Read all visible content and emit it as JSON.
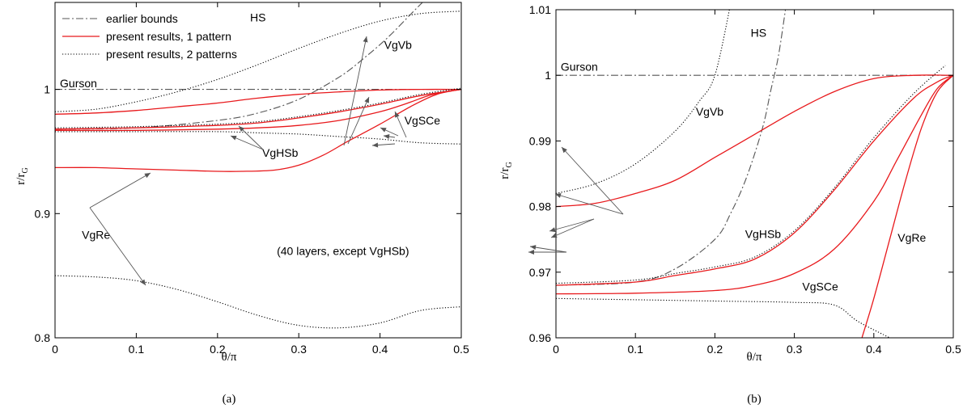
{
  "chart_data": [
    {
      "type": "line",
      "panel_label": "(a)",
      "xlabel": "θ/π",
      "ylabel_main": "r/r",
      "ylabel_sub": "G",
      "xlim": [
        0,
        0.5
      ],
      "ylim": [
        0.8,
        1.07
      ],
      "xticks": [
        0,
        0.1,
        0.2,
        0.3,
        0.4,
        0.5
      ],
      "yticks": [
        0.8,
        0.9,
        1
      ],
      "xtick_labels": [
        "0",
        "0.1",
        "0.2",
        "0.3",
        "0.4",
        "0.5"
      ],
      "ytick_labels": [
        "0.8",
        "0.9",
        "1"
      ],
      "legend": {
        "placement": "top-left",
        "entries": [
          {
            "label": "earlier bounds",
            "style": "dashdot"
          },
          {
            "label": "present results, 1 pattern",
            "style": "solid"
          },
          {
            "label": "present results, 2 patterns",
            "style": "dotted"
          }
        ]
      },
      "annotations": [
        {
          "text": "HS",
          "x": 0.24,
          "y": 1.058
        },
        {
          "text": "Gurson",
          "x": 0.006,
          "y": 1.005
        },
        {
          "text": "VgVb",
          "x": 0.405,
          "y": 1.036
        },
        {
          "text": "VgSCe",
          "x": 0.43,
          "y": 0.975
        },
        {
          "text": "VgHSb",
          "x": 0.255,
          "y": 0.949
        },
        {
          "text": "VgRe",
          "x": 0.033,
          "y": 0.883
        },
        {
          "text": "(40 layers, except VgHSb)",
          "x": 0.273,
          "y": 0.87
        }
      ],
      "series": [
        {
          "style": "dashdot",
          "color": "#000000",
          "x": [
            0,
            0.1,
            0.2,
            0.25,
            0.3,
            0.35,
            0.38,
            0.41,
            0.44,
            0.46
          ],
          "y": [
            0.968,
            0.969,
            0.975,
            0.981,
            0.992,
            1.01,
            1.025,
            1.042,
            1.062,
            1.075
          ]
        },
        {
          "style": "dashdot",
          "color": "#000000",
          "x": [
            0,
            0.5
          ],
          "y": [
            1,
            1
          ]
        },
        {
          "style": "solid",
          "color": "#e8191c",
          "x": [
            0,
            0.05,
            0.1,
            0.15,
            0.2,
            0.25,
            0.3,
            0.35,
            0.4,
            0.45,
            0.5
          ],
          "y": [
            0.98,
            0.981,
            0.983,
            0.986,
            0.989,
            0.993,
            0.996,
            0.998,
            0.9995,
            1,
            1
          ]
        },
        {
          "style": "dotted",
          "color": "#000000",
          "x": [
            0,
            0.05,
            0.1,
            0.15,
            0.2,
            0.25,
            0.3,
            0.35,
            0.4,
            0.45,
            0.5
          ],
          "y": [
            0.982,
            0.984,
            0.99,
            0.998,
            1.008,
            1.02,
            1.033,
            1.045,
            1.055,
            1.061,
            1.063
          ]
        },
        {
          "style": "solid",
          "color": "#e8191c",
          "x": [
            0,
            0.1,
            0.2,
            0.25,
            0.3,
            0.35,
            0.4,
            0.45,
            0.5
          ],
          "y": [
            0.968,
            0.969,
            0.971,
            0.973,
            0.977,
            0.982,
            0.988,
            0.995,
            1
          ]
        },
        {
          "style": "dotted",
          "color": "#000000",
          "x": [
            0,
            0.1,
            0.2,
            0.25,
            0.3,
            0.35,
            0.4,
            0.45,
            0.5
          ],
          "y": [
            0.969,
            0.97,
            0.972,
            0.974,
            0.978,
            0.983,
            0.989,
            0.996,
            1.001
          ]
        },
        {
          "style": "solid",
          "color": "#e8191c",
          "x": [
            0,
            0.1,
            0.2,
            0.25,
            0.3,
            0.35,
            0.4,
            0.43,
            0.46,
            0.48,
            0.5
          ],
          "y": [
            0.967,
            0.967,
            0.968,
            0.969,
            0.971,
            0.975,
            0.982,
            0.988,
            0.995,
            0.998,
            1
          ]
        },
        {
          "style": "dotted",
          "color": "#000000",
          "x": [
            0,
            0.1,
            0.2,
            0.25,
            0.3,
            0.35,
            0.4,
            0.45,
            0.5
          ],
          "y": [
            0.966,
            0.966,
            0.966,
            0.965,
            0.964,
            0.962,
            0.96,
            0.957,
            0.956
          ]
        },
        {
          "style": "solid",
          "color": "#e8191c",
          "x": [
            0,
            0.05,
            0.1,
            0.15,
            0.2,
            0.23,
            0.27,
            0.3,
            0.33,
            0.36,
            0.4,
            0.44,
            0.47,
            0.5
          ],
          "y": [
            0.937,
            0.937,
            0.936,
            0.935,
            0.934,
            0.934,
            0.935,
            0.939,
            0.947,
            0.958,
            0.972,
            0.987,
            0.996,
            1
          ]
        },
        {
          "style": "dotted",
          "color": "#000000",
          "x": [
            0,
            0.05,
            0.1,
            0.15,
            0.2,
            0.25,
            0.3,
            0.35,
            0.4,
            0.45,
            0.5
          ],
          "y": [
            0.85,
            0.849,
            0.846,
            0.839,
            0.829,
            0.818,
            0.81,
            0.808,
            0.812,
            0.822,
            0.825
          ]
        }
      ]
    },
    {
      "type": "line",
      "panel_label": "(b)",
      "xlabel": "θ/π",
      "ylabel_main": "r/r",
      "ylabel_sub": "G",
      "xlim": [
        0,
        0.5
      ],
      "ylim": [
        0.96,
        1.01
      ],
      "xticks": [
        0,
        0.1,
        0.2,
        0.3,
        0.4,
        0.5
      ],
      "yticks": [
        0.96,
        0.97,
        0.98,
        0.99,
        1,
        1.01
      ],
      "xtick_labels": [
        "0",
        "0.1",
        "0.2",
        "0.3",
        "0.4",
        "0.5"
      ],
      "ytick_labels": [
        "0.96",
        "0.97",
        "0.98",
        "0.99",
        "1",
        "1.01"
      ],
      "annotations": [
        {
          "text": "HS",
          "x": 0.245,
          "y": 1.0065
        },
        {
          "text": "Gurson",
          "x": 0.006,
          "y": 1.0013
        },
        {
          "text": "VgVb",
          "x": 0.176,
          "y": 0.9945
        },
        {
          "text": "VgHSb",
          "x": 0.238,
          "y": 0.9758
        },
        {
          "text": "VgSCe",
          "x": 0.31,
          "y": 0.9678
        },
        {
          "text": "VgRe",
          "x": 0.43,
          "y": 0.9753
        }
      ],
      "series": [
        {
          "style": "dashdot",
          "color": "#000000",
          "x": [
            0,
            0.1,
            0.15,
            0.2,
            0.22,
            0.24,
            0.26,
            0.27,
            0.28,
            0.29
          ],
          "y": [
            0.968,
            0.9685,
            0.9705,
            0.975,
            0.979,
            0.9845,
            0.992,
            0.9975,
            1.003,
            1.011
          ]
        },
        {
          "style": "dashdot",
          "color": "#000000",
          "x": [
            0,
            0.5
          ],
          "y": [
            1,
            1
          ]
        },
        {
          "style": "dotted",
          "color": "#000000",
          "x": [
            0,
            0.05,
            0.1,
            0.15,
            0.18,
            0.2,
            0.22
          ],
          "y": [
            0.982,
            0.9835,
            0.9865,
            0.9915,
            0.996,
            1.0,
            1.011
          ]
        },
        {
          "style": "solid",
          "color": "#e8191c",
          "x": [
            0,
            0.05,
            0.1,
            0.15,
            0.2,
            0.25,
            0.3,
            0.35,
            0.4,
            0.45,
            0.5
          ],
          "y": [
            0.98,
            0.9805,
            0.982,
            0.984,
            0.9875,
            0.991,
            0.9945,
            0.9975,
            0.9995,
            1.0,
            1.0
          ]
        },
        {
          "style": "solid",
          "color": "#e8191c",
          "x": [
            0,
            0.1,
            0.15,
            0.2,
            0.25,
            0.3,
            0.35,
            0.4,
            0.45,
            0.48,
            0.5
          ],
          "y": [
            0.968,
            0.9685,
            0.9695,
            0.9705,
            0.972,
            0.976,
            0.9825,
            0.99,
            0.9965,
            0.999,
            1.0
          ]
        },
        {
          "style": "dotted",
          "color": "#000000",
          "x": [
            0,
            0.1,
            0.15,
            0.2,
            0.25,
            0.3,
            0.35,
            0.4,
            0.45,
            0.49
          ],
          "y": [
            0.9683,
            0.9688,
            0.9698,
            0.9708,
            0.9723,
            0.9763,
            0.9828,
            0.9905,
            0.9972,
            1.0015
          ]
        },
        {
          "style": "solid",
          "color": "#e8191c",
          "x": [
            0,
            0.1,
            0.2,
            0.25,
            0.3,
            0.35,
            0.4,
            0.43,
            0.46,
            0.48,
            0.5
          ],
          "y": [
            0.9667,
            0.9668,
            0.9672,
            0.968,
            0.9698,
            0.9735,
            0.9808,
            0.9873,
            0.994,
            0.998,
            1.0
          ]
        },
        {
          "style": "dotted",
          "color": "#000000",
          "x": [
            0,
            0.1,
            0.2,
            0.3,
            0.35,
            0.38,
            0.42
          ],
          "y": [
            0.966,
            0.9658,
            0.9656,
            0.9654,
            0.965,
            0.9625,
            0.96
          ]
        },
        {
          "style": "solid",
          "color": "#e8191c",
          "x": [
            0.385,
            0.4,
            0.42,
            0.44,
            0.46,
            0.48,
            0.5
          ],
          "y": [
            0.96,
            0.966,
            0.975,
            0.984,
            0.992,
            0.9975,
            1.0
          ]
        }
      ]
    }
  ]
}
